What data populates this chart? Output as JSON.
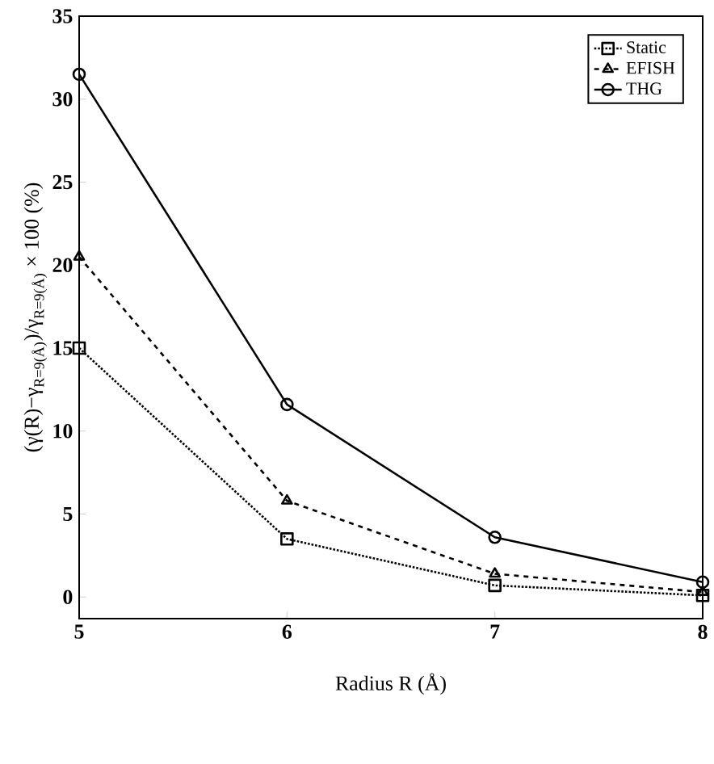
{
  "chart_data": {
    "type": "line",
    "xlabel": "Radius  R  (Å)",
    "ylabel": "(γ(R)−γ$_{R=9(Å)}$)/γ$_{R=9(Å)}$ × 100 (%)",
    "x": [
      5,
      6,
      7,
      8
    ],
    "series": [
      {
        "name": "Static",
        "color": "#000000",
        "values": [
          15,
          3.5,
          0.7,
          0.1
        ],
        "marker": "square",
        "line_style": "dotted"
      },
      {
        "name": "EFISH",
        "color": "#000000",
        "values": [
          20.5,
          5.8,
          1.4,
          0.3
        ],
        "marker": "triangle",
        "line_style": "dashed"
      },
      {
        "name": "THG",
        "color": "#000000",
        "values": [
          31.5,
          11.6,
          3.6,
          0.9
        ],
        "marker": "circle",
        "line_style": "solid"
      }
    ],
    "xlim": [
      5,
      8
    ],
    "xticks": [
      5,
      6,
      7,
      8
    ],
    "ylim": [
      -1.3,
      35
    ],
    "yticks": [
      0,
      5,
      10,
      15,
      20,
      25,
      30,
      35
    ],
    "grid": false,
    "legend": "top right"
  }
}
